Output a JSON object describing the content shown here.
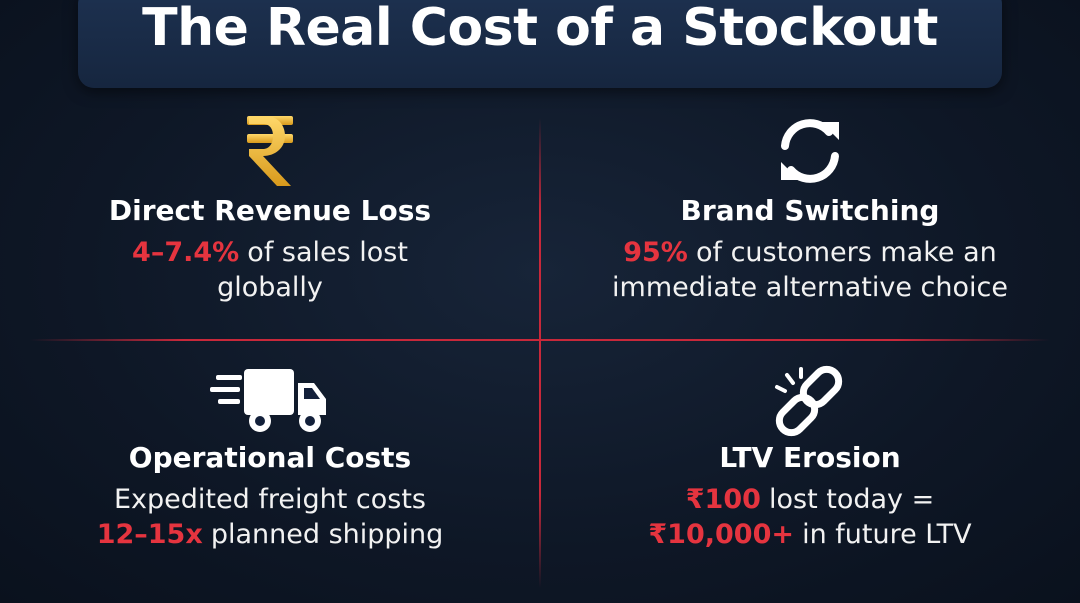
{
  "header": {
    "title": "The Real Cost of a Stockout"
  },
  "cards": [
    {
      "heading": "Direct Revenue Loss",
      "lines": [
        [
          {
            "text": "4–7.4%",
            "highlight": true
          },
          {
            "text": "of sales lost",
            "highlight": false
          }
        ],
        [
          {
            "text": "globally",
            "highlight": false
          }
        ]
      ]
    },
    {
      "heading": "Brand Switching",
      "lines": [
        [
          {
            "text": "95%",
            "highlight": true
          },
          {
            "text": "of customers make an",
            "highlight": false
          }
        ],
        [
          {
            "text": "immediate alternative choice",
            "highlight": false
          }
        ]
      ]
    },
    {
      "heading": "Operational Costs",
      "lines": [
        [
          {
            "text": "Expedited freight costs",
            "highlight": false
          }
        ],
        [
          {
            "text": "12–15x",
            "highlight": true
          },
          {
            "text": "planned shipping",
            "highlight": false
          }
        ]
      ]
    },
    {
      "heading": "LTV Erosion",
      "lines": [
        [
          {
            "text": "₹100",
            "highlight": true
          },
          {
            "text": "lost today =",
            "highlight": false
          }
        ],
        [
          {
            "text": "₹10,000+",
            "highlight": true
          },
          {
            "text": "in future LTV",
            "highlight": false
          }
        ]
      ]
    }
  ]
}
